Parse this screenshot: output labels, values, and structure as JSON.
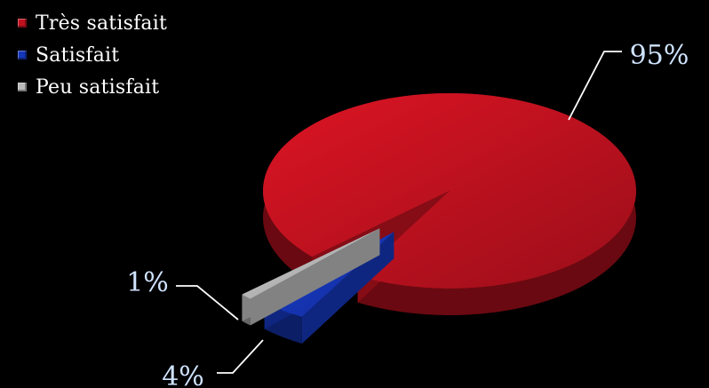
{
  "chart_data": {
    "type": "pie",
    "style": "3d-exploded",
    "legend_position": "top-left",
    "title": "",
    "slices": [
      {
        "label": "Très satisfait",
        "value": 95,
        "display": "95%",
        "color": "#c0111f"
      },
      {
        "label": "Satisfait",
        "value": 4,
        "display": "4%",
        "color": "#1636b8"
      },
      {
        "label": "Peu satisfait",
        "value": 1,
        "display": "1%",
        "color": "#b9b9b9"
      }
    ]
  },
  "colors": {
    "background": "#000000",
    "label_text": "#cfe3ff",
    "legend_text": "#ffffff",
    "leader_line": "#ffffff"
  }
}
